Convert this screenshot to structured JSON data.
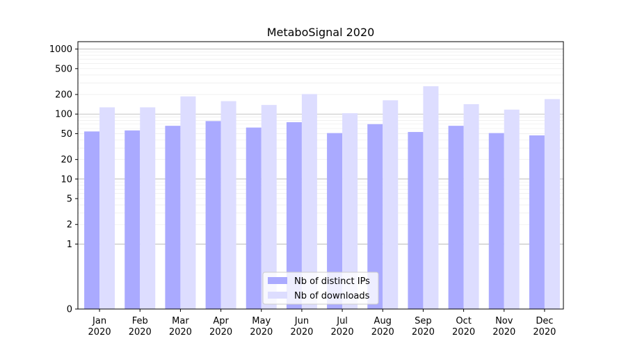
{
  "chart_data": {
    "type": "bar",
    "title": "MetaboSignal 2020",
    "xlabel": "",
    "ylabel": "",
    "yscale": "symlog",
    "ylim": [
      0,
      1300
    ],
    "yticks": [
      0,
      1,
      2,
      5,
      10,
      20,
      50,
      100,
      200,
      500,
      1000
    ],
    "categories": [
      "Jan\n2020",
      "Feb\n2020",
      "Mar\n2020",
      "Apr\n2020",
      "May\n2020",
      "Jun\n2020",
      "Jul\n2020",
      "Aug\n2020",
      "Sep\n2020",
      "Oct\n2020",
      "Nov\n2020",
      "Dec\n2020"
    ],
    "series": [
      {
        "name": "Nb of distinct IPs",
        "color": "#aaaaff",
        "values": [
          54,
          56,
          66,
          78,
          62,
          75,
          51,
          70,
          53,
          66,
          51,
          47
        ]
      },
      {
        "name": "Nb of downloads",
        "color": "#ddddff",
        "values": [
          127,
          127,
          187,
          158,
          138,
          203,
          103,
          163,
          268,
          142,
          117,
          170
        ]
      }
    ],
    "grid": true,
    "legend_position": "bottom-center"
  }
}
